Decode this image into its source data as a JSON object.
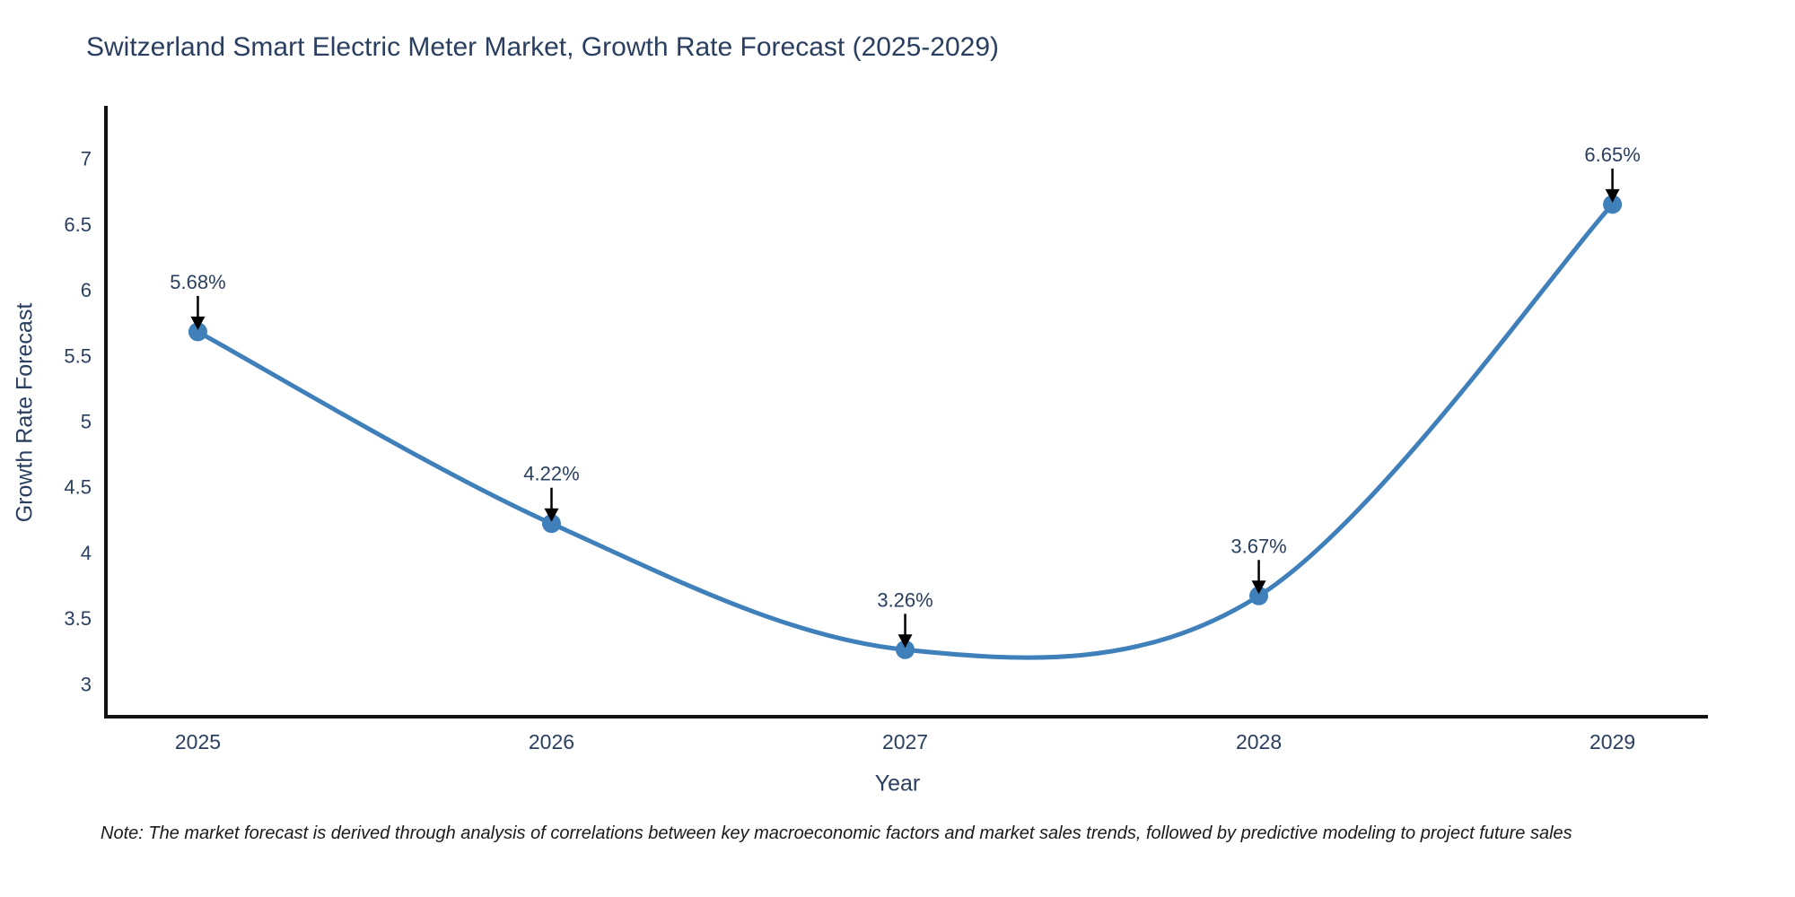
{
  "note": "Note: The market forecast is derived through analysis of correlations between key macroeconomic factors and market sales trends, followed by predictive modeling to project future sales",
  "chart_data": {
    "type": "line",
    "title": "Switzerland Smart Electric Meter Market, Growth Rate Forecast (2025-2029)",
    "xlabel": "Year",
    "ylabel": "Growth Rate Forecast",
    "categories": [
      "2025",
      "2026",
      "2027",
      "2028",
      "2029"
    ],
    "x": [
      2025,
      2026,
      2027,
      2028,
      2029
    ],
    "values": [
      5.68,
      4.22,
      3.26,
      3.67,
      6.65
    ],
    "point_labels": [
      "5.68%",
      "4.22%",
      "3.26%",
      "3.67%",
      "6.65%"
    ],
    "yticks": [
      3,
      3.5,
      4,
      4.5,
      5,
      5.5,
      6,
      6.5,
      7
    ],
    "ylim": [
      2.75,
      7.4
    ],
    "xlim": [
      2024.74,
      2029.27
    ],
    "line_shape": "spline",
    "grid": false,
    "legend_position": "none",
    "line_color": "#3f7fba",
    "marker_color": "#3f7fba",
    "axis_color": "#111111",
    "text_color": "#2a3f5f",
    "annotation_color": "#2a3f5f",
    "arrow_color": "#000000"
  }
}
